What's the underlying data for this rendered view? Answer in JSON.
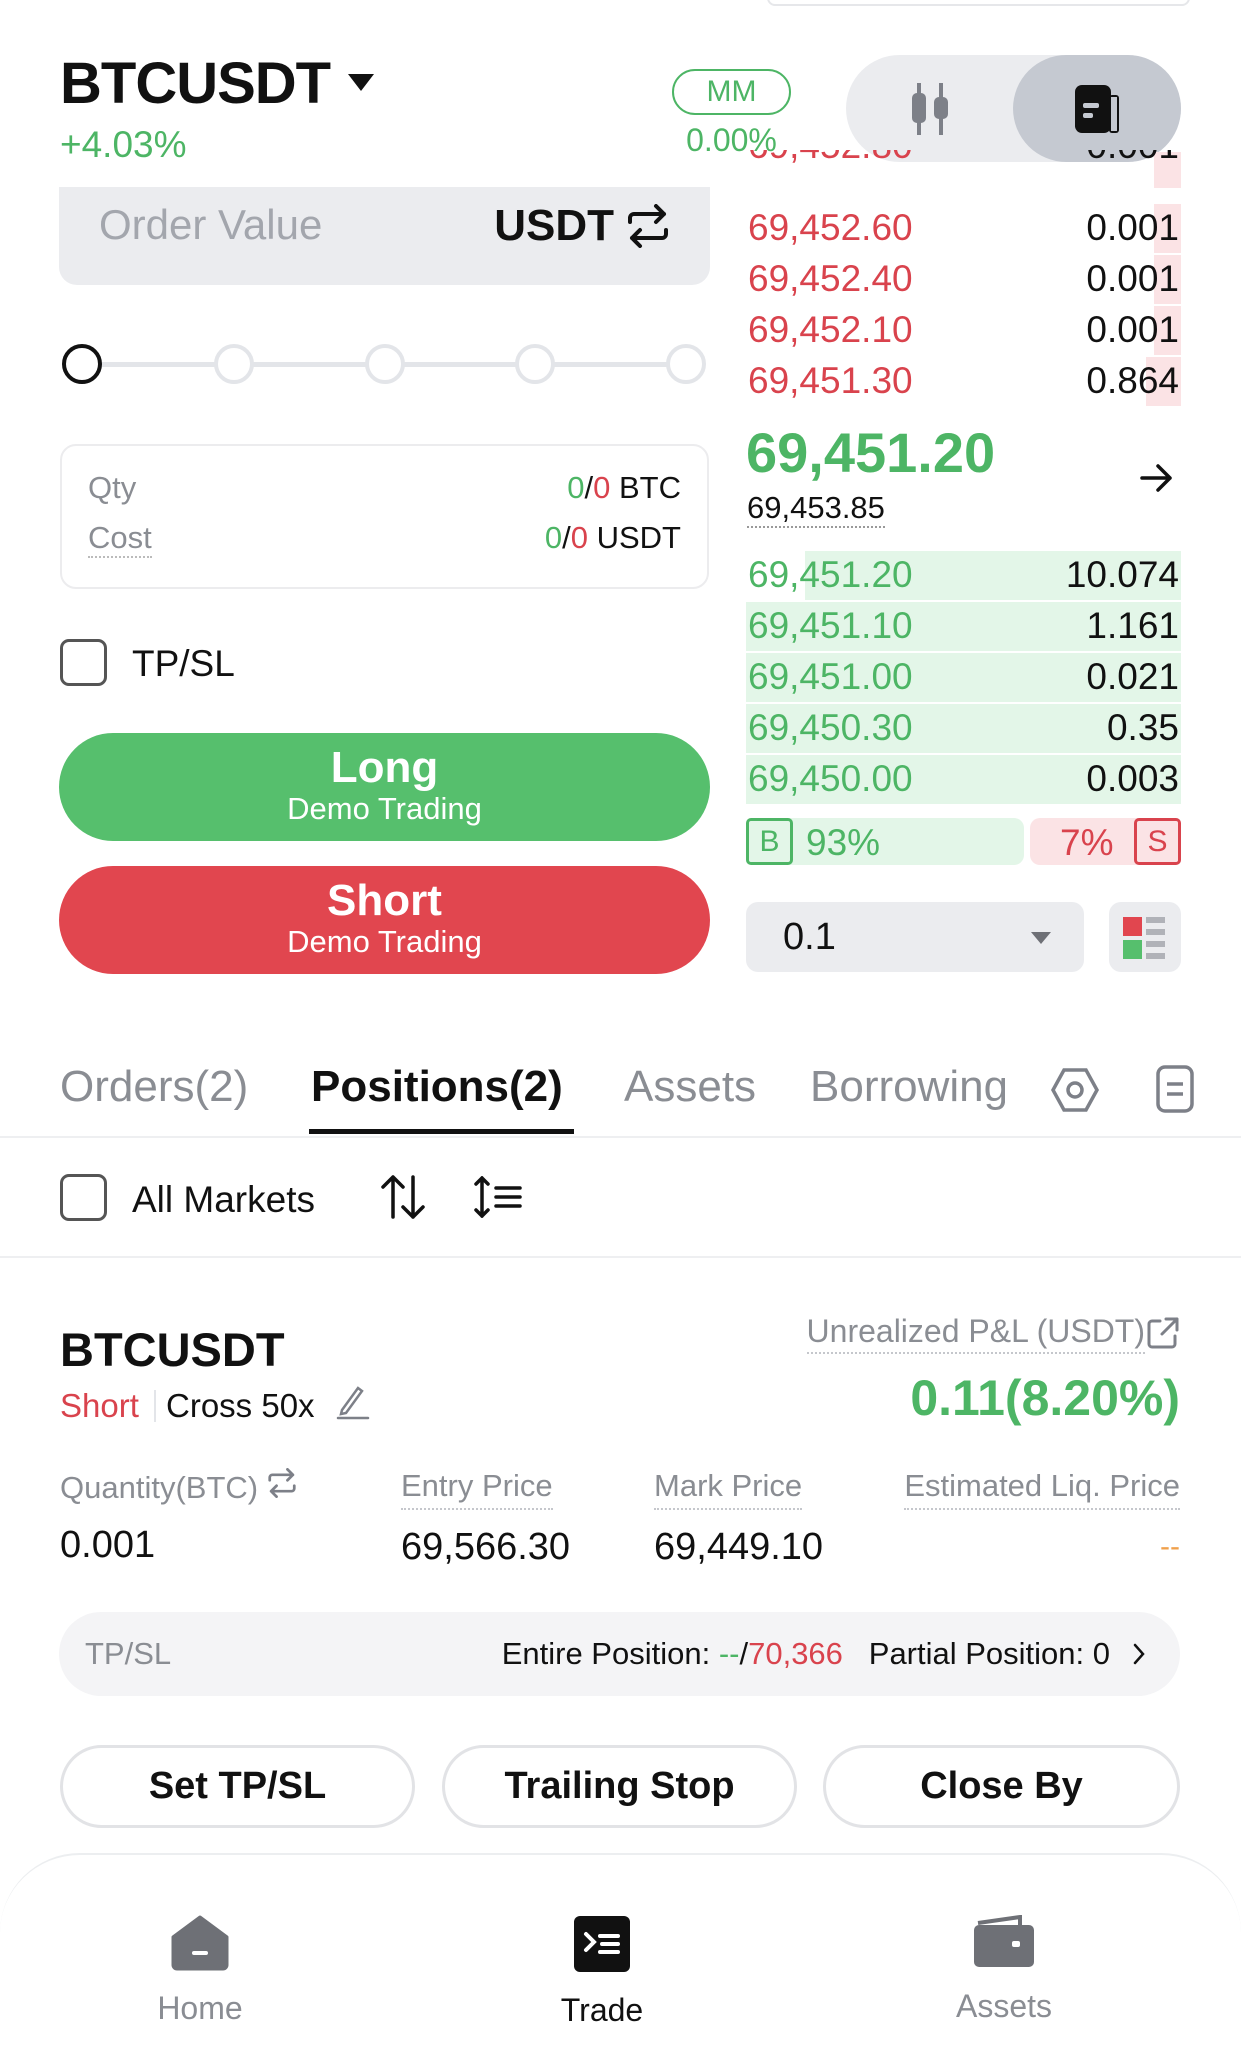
{
  "header": {
    "symbol": "BTCUSDT",
    "change": "+4.03%",
    "mm_label": "MM",
    "mm_value": "0.00%",
    "view_toggle": [
      "chart-icon",
      "orderbook-icon"
    ],
    "active_view": "orderbook"
  },
  "order_form": {
    "order_value_placeholder": "Order Value",
    "currency": "USDT",
    "slider_level_percent": 0,
    "slider_steps": 5,
    "qty_label": "Qty",
    "qty_avail": "0",
    "qty_sep": "/",
    "qty_max": "0",
    "qty_unit": "BTC",
    "cost_label": "Cost",
    "cost_avail": "0",
    "cost_max": "0",
    "cost_unit": "USDT",
    "tpsl_label": "TP/SL",
    "tpsl_checked": false,
    "long_label": "Long",
    "long_sub": "Demo Trading",
    "short_label": "Short",
    "short_sub": "Demo Trading"
  },
  "orderbook": {
    "asks": [
      {
        "price": "69,452.60",
        "qty": "0.001"
      },
      {
        "price": "69,452.40",
        "qty": "0.001"
      },
      {
        "price": "69,452.10",
        "qty": "0.001"
      },
      {
        "price": "69,451.30",
        "qty": "0.864"
      }
    ],
    "last_price": "69,451.20",
    "mark_price": "69,453.85",
    "bids": [
      {
        "price": "69,451.20",
        "qty": "10.074"
      },
      {
        "price": "69,451.10",
        "qty": "1.161"
      },
      {
        "price": "69,451.00",
        "qty": "0.021"
      },
      {
        "price": "69,450.30",
        "qty": "0.35"
      },
      {
        "price": "69,450.00",
        "qty": "0.003"
      }
    ],
    "buy_badge": "B",
    "buy_ratio": "93%",
    "sell_ratio": "7%",
    "sell_badge": "S",
    "precision": "0.1"
  },
  "tabs": {
    "items": [
      "Orders(2)",
      "Positions(2)",
      "Assets",
      "Borrowing"
    ],
    "active": 1
  },
  "filter": {
    "all_markets": "All Markets"
  },
  "position": {
    "symbol": "BTCUSDT",
    "side": "Short",
    "mode": "Cross 50x",
    "pnl_label": "Unrealized P&L (USDT)",
    "pnl_value": "0.11(8.20%)",
    "columns": [
      {
        "label": "Quantity(BTC)",
        "value": "0.001"
      },
      {
        "label": "Entry Price",
        "value": "69,566.30"
      },
      {
        "label": "Mark Price",
        "value": "69,449.10"
      },
      {
        "label": "Estimated Liq. Price",
        "value": "--"
      }
    ],
    "tpsl_label": "TP/SL",
    "entire_label": "Entire Position: ",
    "entire_tp": "--",
    "entire_sep": "/",
    "entire_sl": "70,366",
    "partial_label": "Partial Position: 0",
    "buttons": [
      "Set TP/SL",
      "Trailing Stop",
      "Close By"
    ]
  },
  "nav": {
    "items": [
      "Home",
      "Trade",
      "Assets"
    ],
    "active": 1
  },
  "colors": {
    "green": "#4db565",
    "red": "#d9434d",
    "long_button": "#56bf6d",
    "short_button": "#e1464f"
  }
}
